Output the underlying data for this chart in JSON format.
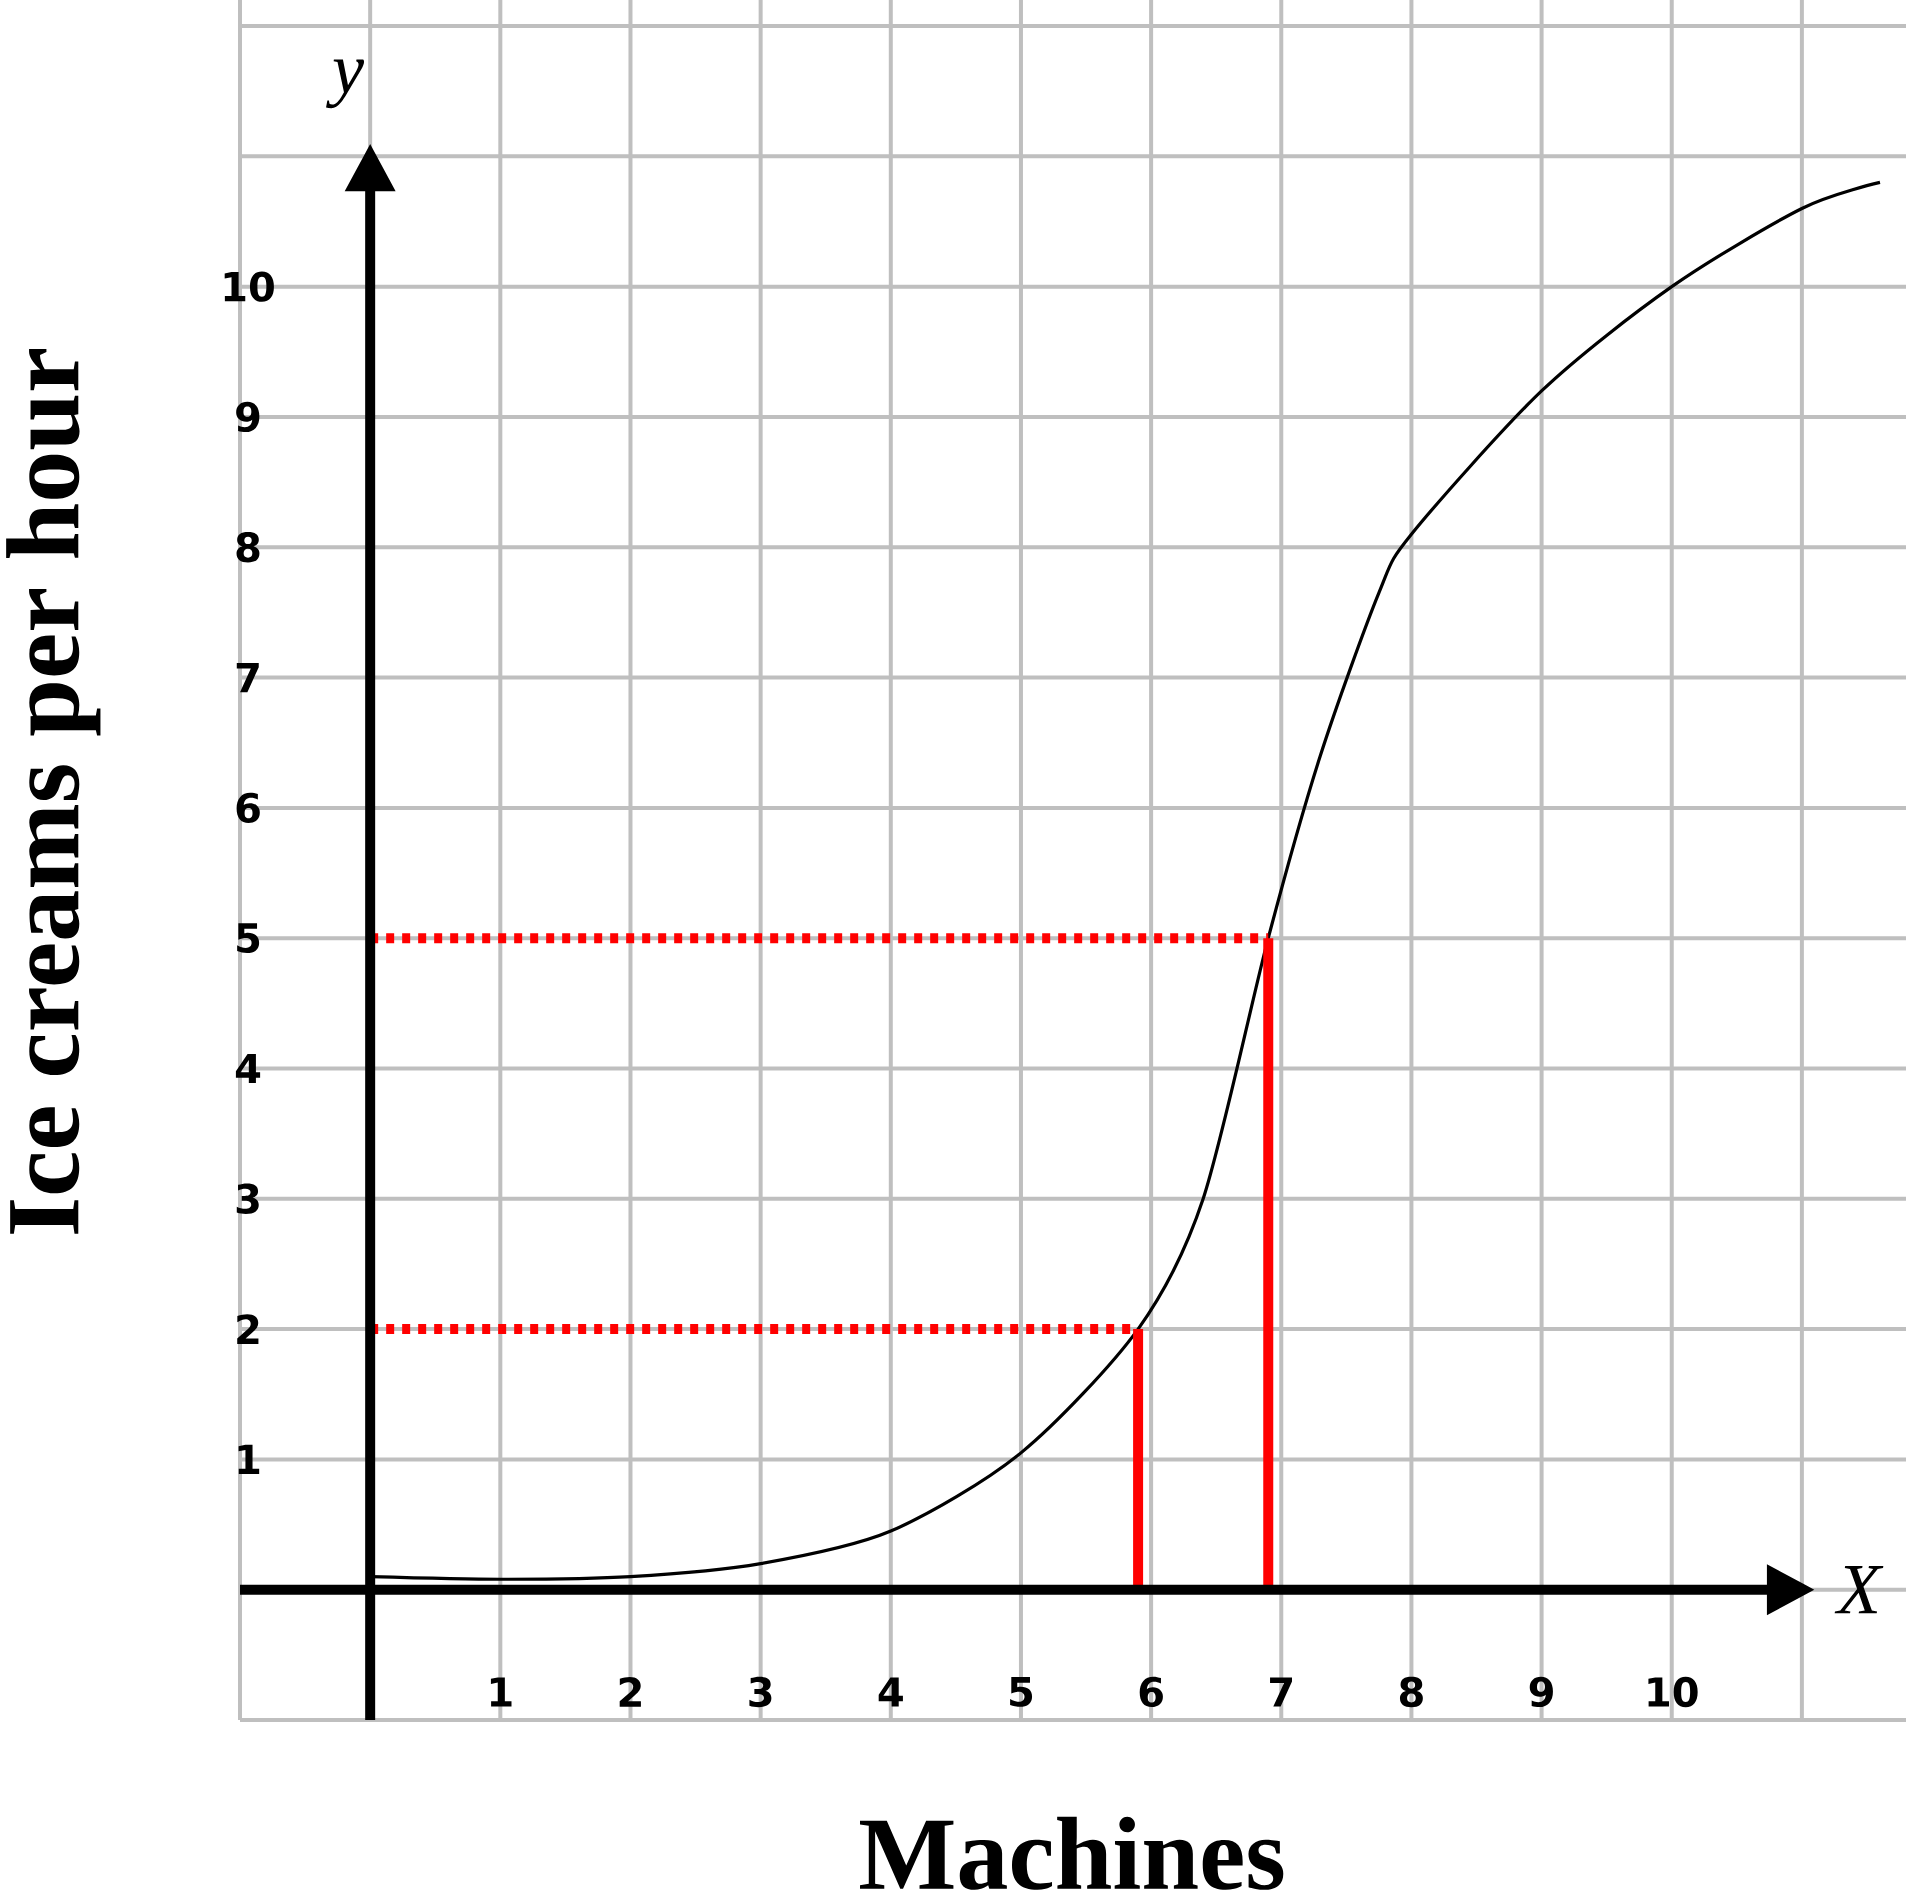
{
  "chart_data": {
    "type": "line",
    "xlabel": "Machines",
    "ylabel": "Ice creams per hour",
    "annotations": [
      "y",
      "X"
    ],
    "grid": true,
    "xlim": [
      -1,
      11.8
    ],
    "ylim": [
      -1,
      12.2
    ],
    "xticks": [
      {
        "value": -1,
        "label": null
      },
      {
        "value": 0,
        "label": null
      },
      1,
      2,
      3,
      4,
      5,
      6,
      7,
      8,
      9,
      10,
      {
        "value": 11,
        "label": null
      }
    ],
    "yticks": [
      {
        "value": -1,
        "label": null
      },
      {
        "value": 0,
        "label": null
      },
      1,
      2,
      3,
      4,
      5,
      6,
      7,
      8,
      9,
      10,
      {
        "value": 11,
        "label": null
      },
      {
        "value": 12,
        "label": null
      }
    ],
    "series": [
      {
        "color": "#000000",
        "line_style": "solid",
        "x": [
          0,
          1,
          2,
          3,
          4,
          5,
          5.9,
          6.4,
          6.9,
          7.3,
          7.75,
          8,
          9,
          10,
          11,
          11.6
        ],
        "values": [
          0.1,
          0.08,
          0.1,
          0.2,
          0.45,
          1.05,
          2,
          3,
          5,
          6.4,
          7.65,
          8.1,
          9.2,
          10,
          10.6,
          10.8
        ]
      },
      {
        "color": "#ff0000",
        "line_style": "dotted",
        "x": [
          0,
          5.9
        ],
        "values": [
          2,
          2
        ]
      },
      {
        "color": "#ff0000",
        "line_style": "solid",
        "x": [
          5.9,
          5.9
        ],
        "values": [
          0,
          2
        ]
      },
      {
        "color": "#ff0000",
        "line_style": "dotted",
        "x": [
          0,
          6.9
        ],
        "values": [
          5,
          5
        ]
      },
      {
        "color": "#ff0000",
        "line_style": "solid",
        "x": [
          6.9,
          6.9
        ],
        "values": [
          0,
          5
        ]
      }
    ]
  }
}
